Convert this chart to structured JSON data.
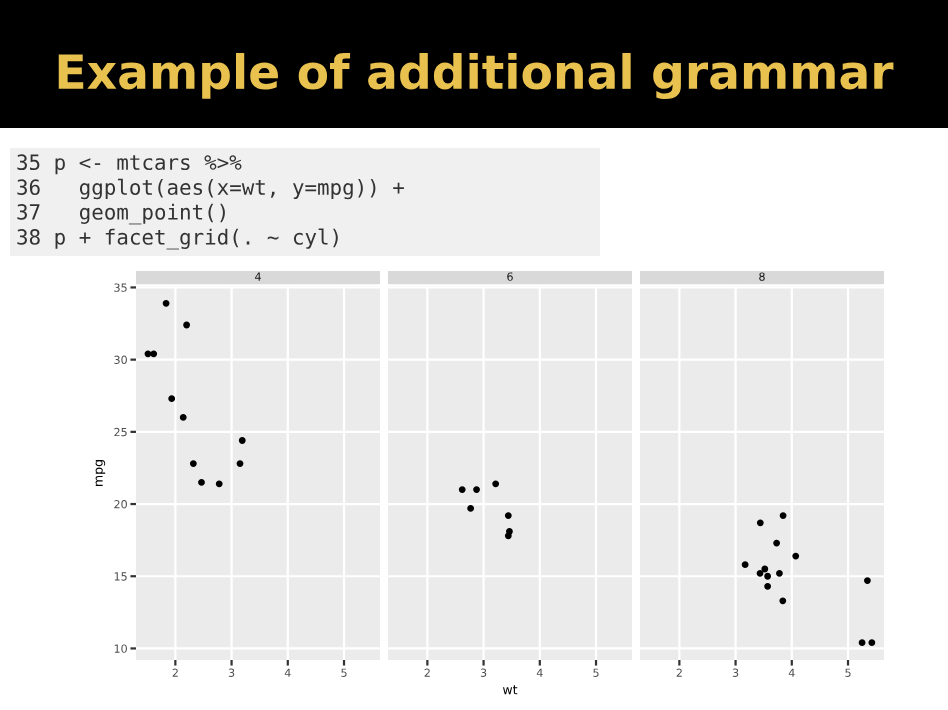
{
  "chart_data": [
    {
      "type": "scatter",
      "title": "4",
      "ylabel": "mpg",
      "annotations": [
        "Example of additional grammar",
        "35 p <- mtcars %>%",
        "36   ggplot(aes(x=wt, y=mpg)) +",
        "37   geom_point()",
        "38 p + facet_grid(. ~ cyl)"
      ],
      "x": [
        2.32,
        3.19,
        3.15,
        2.2,
        1.615,
        1.835,
        2.465,
        1.935,
        2.14,
        1.513,
        2.78
      ],
      "values": [
        22.8,
        24.4,
        22.8,
        32.4,
        30.4,
        33.9,
        21.5,
        27.3,
        26.0,
        30.4,
        21.4
      ],
      "color": "#000000",
      "marker": "circle",
      "grid": true,
      "xlim": [
        1.3,
        5.64
      ],
      "ylim": [
        9.2,
        35.1
      ],
      "xticks": [
        2,
        3,
        4,
        5
      ],
      "yticks": [
        10,
        15,
        20,
        25,
        30,
        35
      ]
    },
    {
      "type": "scatter",
      "title": "6",
      "xlabel": "wt",
      "x": [
        2.62,
        2.875,
        3.215,
        3.46,
        3.44,
        3.44,
        2.77
      ],
      "values": [
        21.0,
        21.0,
        21.4,
        18.1,
        19.2,
        17.8,
        19.7
      ],
      "color": "#000000",
      "marker": "circle",
      "grid": true,
      "tick_labels": "x",
      "xlim": [
        1.3,
        5.64
      ],
      "ylim": [
        9.2,
        35.1
      ],
      "xticks": [
        2,
        3,
        4,
        5
      ],
      "yticks": [
        10,
        15,
        20,
        25,
        30,
        35
      ]
    },
    {
      "type": "scatter",
      "title": "8",
      "x": [
        3.44,
        3.57,
        4.07,
        3.73,
        3.78,
        5.25,
        5.424,
        5.345,
        3.52,
        3.435,
        3.84,
        3.845,
        3.17,
        3.57
      ],
      "values": [
        18.7,
        14.3,
        16.4,
        17.3,
        15.2,
        10.4,
        10.4,
        14.7,
        15.5,
        15.2,
        13.3,
        19.2,
        15.8,
        15.0
      ],
      "color": "#000000",
      "marker": "circle",
      "grid": true,
      "tick_labels": "x",
      "xlim": [
        1.3,
        5.64
      ],
      "ylim": [
        9.2,
        35.1
      ],
      "xticks": [
        2,
        3,
        4,
        5
      ],
      "yticks": [
        10,
        15,
        20,
        25,
        30,
        35
      ]
    }
  ]
}
